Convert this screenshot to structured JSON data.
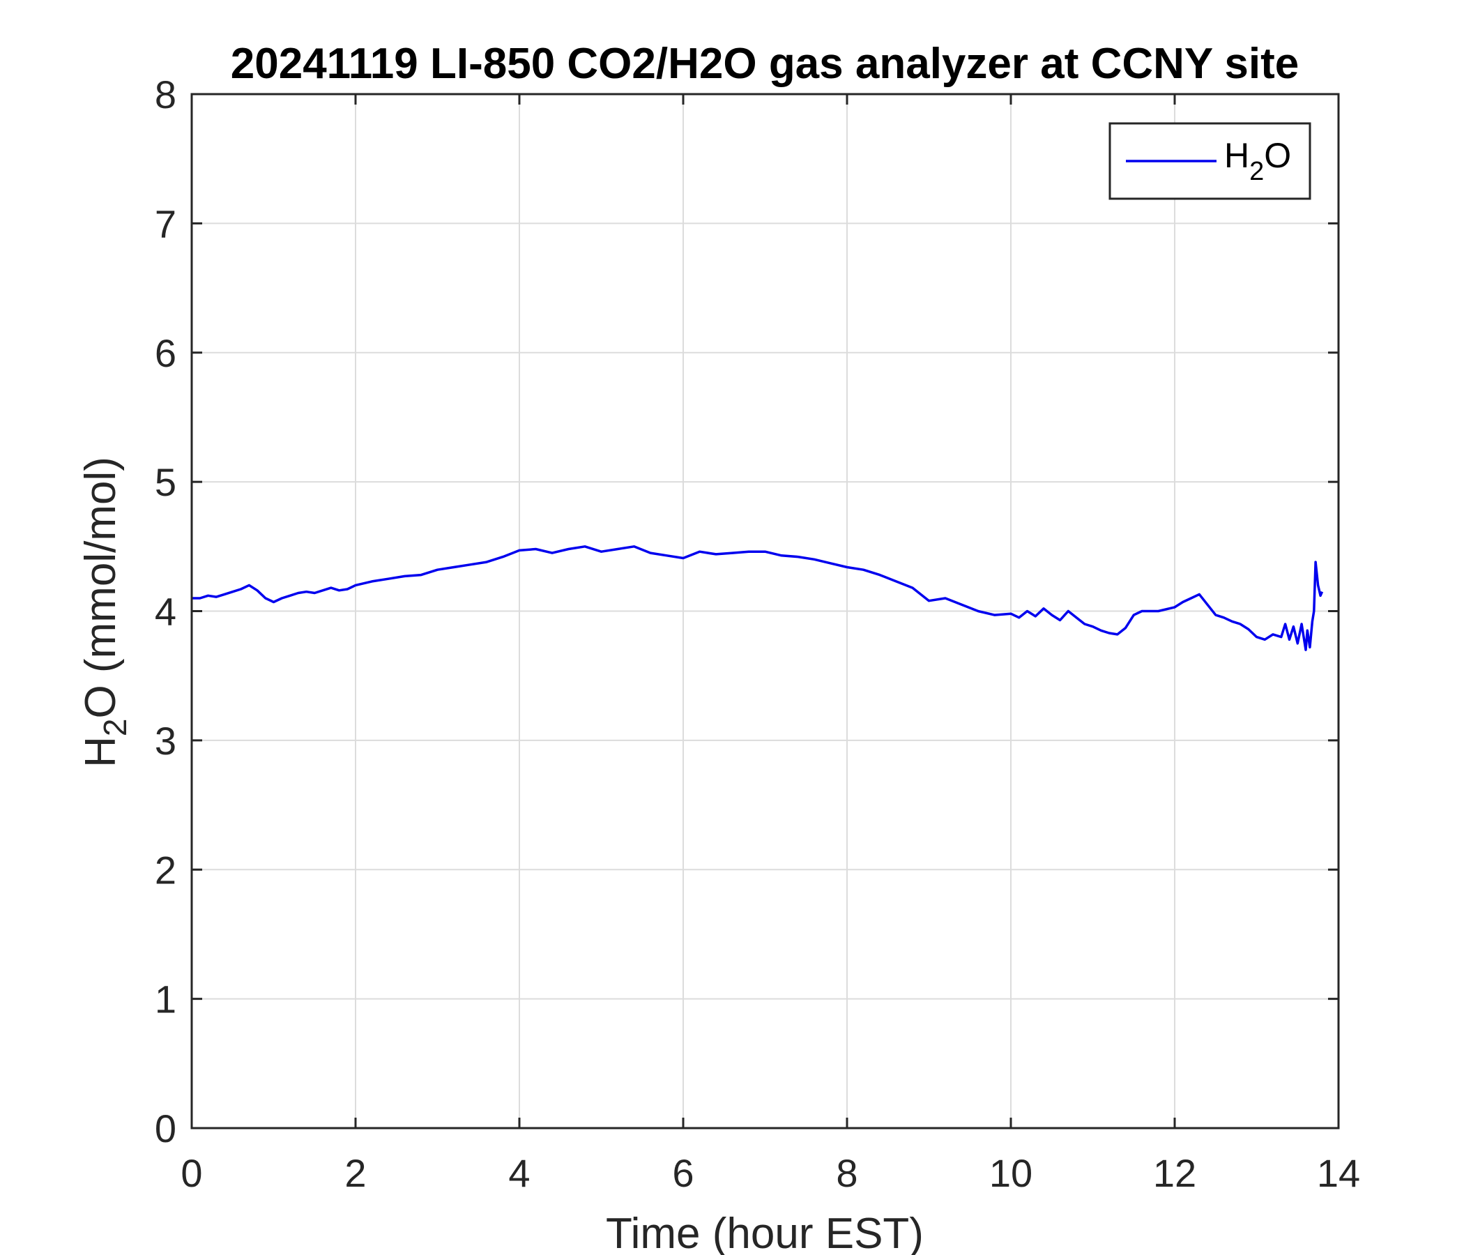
{
  "chart_data": {
    "type": "line",
    "title": "20241119 LI-850 CO2/H2O gas analyzer at CCNY site",
    "xlabel": "Time (hour EST)",
    "ylabel": {
      "base": "H",
      "subscript": "2",
      "rest": "O (mmol/mol)"
    },
    "xlim": [
      0,
      14
    ],
    "ylim": [
      0,
      8
    ],
    "xticks": [
      0,
      2,
      4,
      6,
      8,
      10,
      12,
      14
    ],
    "yticks": [
      0,
      1,
      2,
      3,
      4,
      5,
      6,
      7,
      8
    ],
    "grid": true,
    "legend": {
      "placement": "top-right",
      "entries": [
        {
          "base": "H",
          "subscript": "2",
          "rest": "O"
        }
      ]
    },
    "colors": {
      "series": "#0000ee",
      "grid": "#dcdcdc",
      "axis": "#262626"
    },
    "series": [
      {
        "name": "H2O",
        "color": "#0000ee",
        "x": [
          0,
          0.1,
          0.2,
          0.3,
          0.4,
          0.5,
          0.6,
          0.7,
          0.8,
          0.9,
          1.0,
          1.1,
          1.2,
          1.3,
          1.4,
          1.5,
          1.6,
          1.7,
          1.8,
          1.9,
          2.0,
          2.2,
          2.4,
          2.6,
          2.8,
          3.0,
          3.2,
          3.4,
          3.6,
          3.8,
          4.0,
          4.2,
          4.4,
          4.6,
          4.8,
          5.0,
          5.2,
          5.4,
          5.6,
          5.8,
          6.0,
          6.2,
          6.4,
          6.6,
          6.8,
          7.0,
          7.2,
          7.4,
          7.6,
          7.8,
          8.0,
          8.2,
          8.4,
          8.6,
          8.8,
          9.0,
          9.2,
          9.4,
          9.6,
          9.8,
          10.0,
          10.1,
          10.2,
          10.3,
          10.4,
          10.5,
          10.6,
          10.7,
          10.8,
          10.9,
          11.0,
          11.1,
          11.2,
          11.3,
          11.4,
          11.5,
          11.6,
          11.8,
          12.0,
          12.1,
          12.2,
          12.3,
          12.4,
          12.5,
          12.6,
          12.7,
          12.8,
          12.9,
          13.0,
          13.1,
          13.2,
          13.3,
          13.35,
          13.4,
          13.45,
          13.5,
          13.55,
          13.6,
          13.62,
          13.65,
          13.68,
          13.7,
          13.72,
          13.75,
          13.78,
          13.8
        ],
        "values": [
          4.1,
          4.1,
          4.12,
          4.11,
          4.13,
          4.15,
          4.17,
          4.2,
          4.16,
          4.1,
          4.07,
          4.1,
          4.12,
          4.14,
          4.15,
          4.14,
          4.16,
          4.18,
          4.16,
          4.17,
          4.2,
          4.23,
          4.25,
          4.27,
          4.28,
          4.32,
          4.34,
          4.36,
          4.38,
          4.42,
          4.47,
          4.48,
          4.45,
          4.48,
          4.5,
          4.46,
          4.48,
          4.5,
          4.45,
          4.43,
          4.41,
          4.46,
          4.44,
          4.45,
          4.46,
          4.46,
          4.43,
          4.42,
          4.4,
          4.37,
          4.34,
          4.32,
          4.28,
          4.23,
          4.18,
          4.08,
          4.1,
          4.05,
          4.0,
          3.97,
          3.98,
          3.95,
          4.0,
          3.96,
          4.02,
          3.97,
          3.93,
          4.0,
          3.95,
          3.9,
          3.88,
          3.85,
          3.83,
          3.82,
          3.87,
          3.97,
          4.0,
          4.0,
          4.03,
          4.07,
          4.1,
          4.13,
          4.05,
          3.97,
          3.95,
          3.92,
          3.9,
          3.86,
          3.8,
          3.78,
          3.82,
          3.8,
          3.9,
          3.78,
          3.88,
          3.75,
          3.9,
          3.7,
          3.85,
          3.72,
          3.92,
          4.0,
          4.38,
          4.2,
          4.12,
          4.15
        ]
      }
    ]
  }
}
